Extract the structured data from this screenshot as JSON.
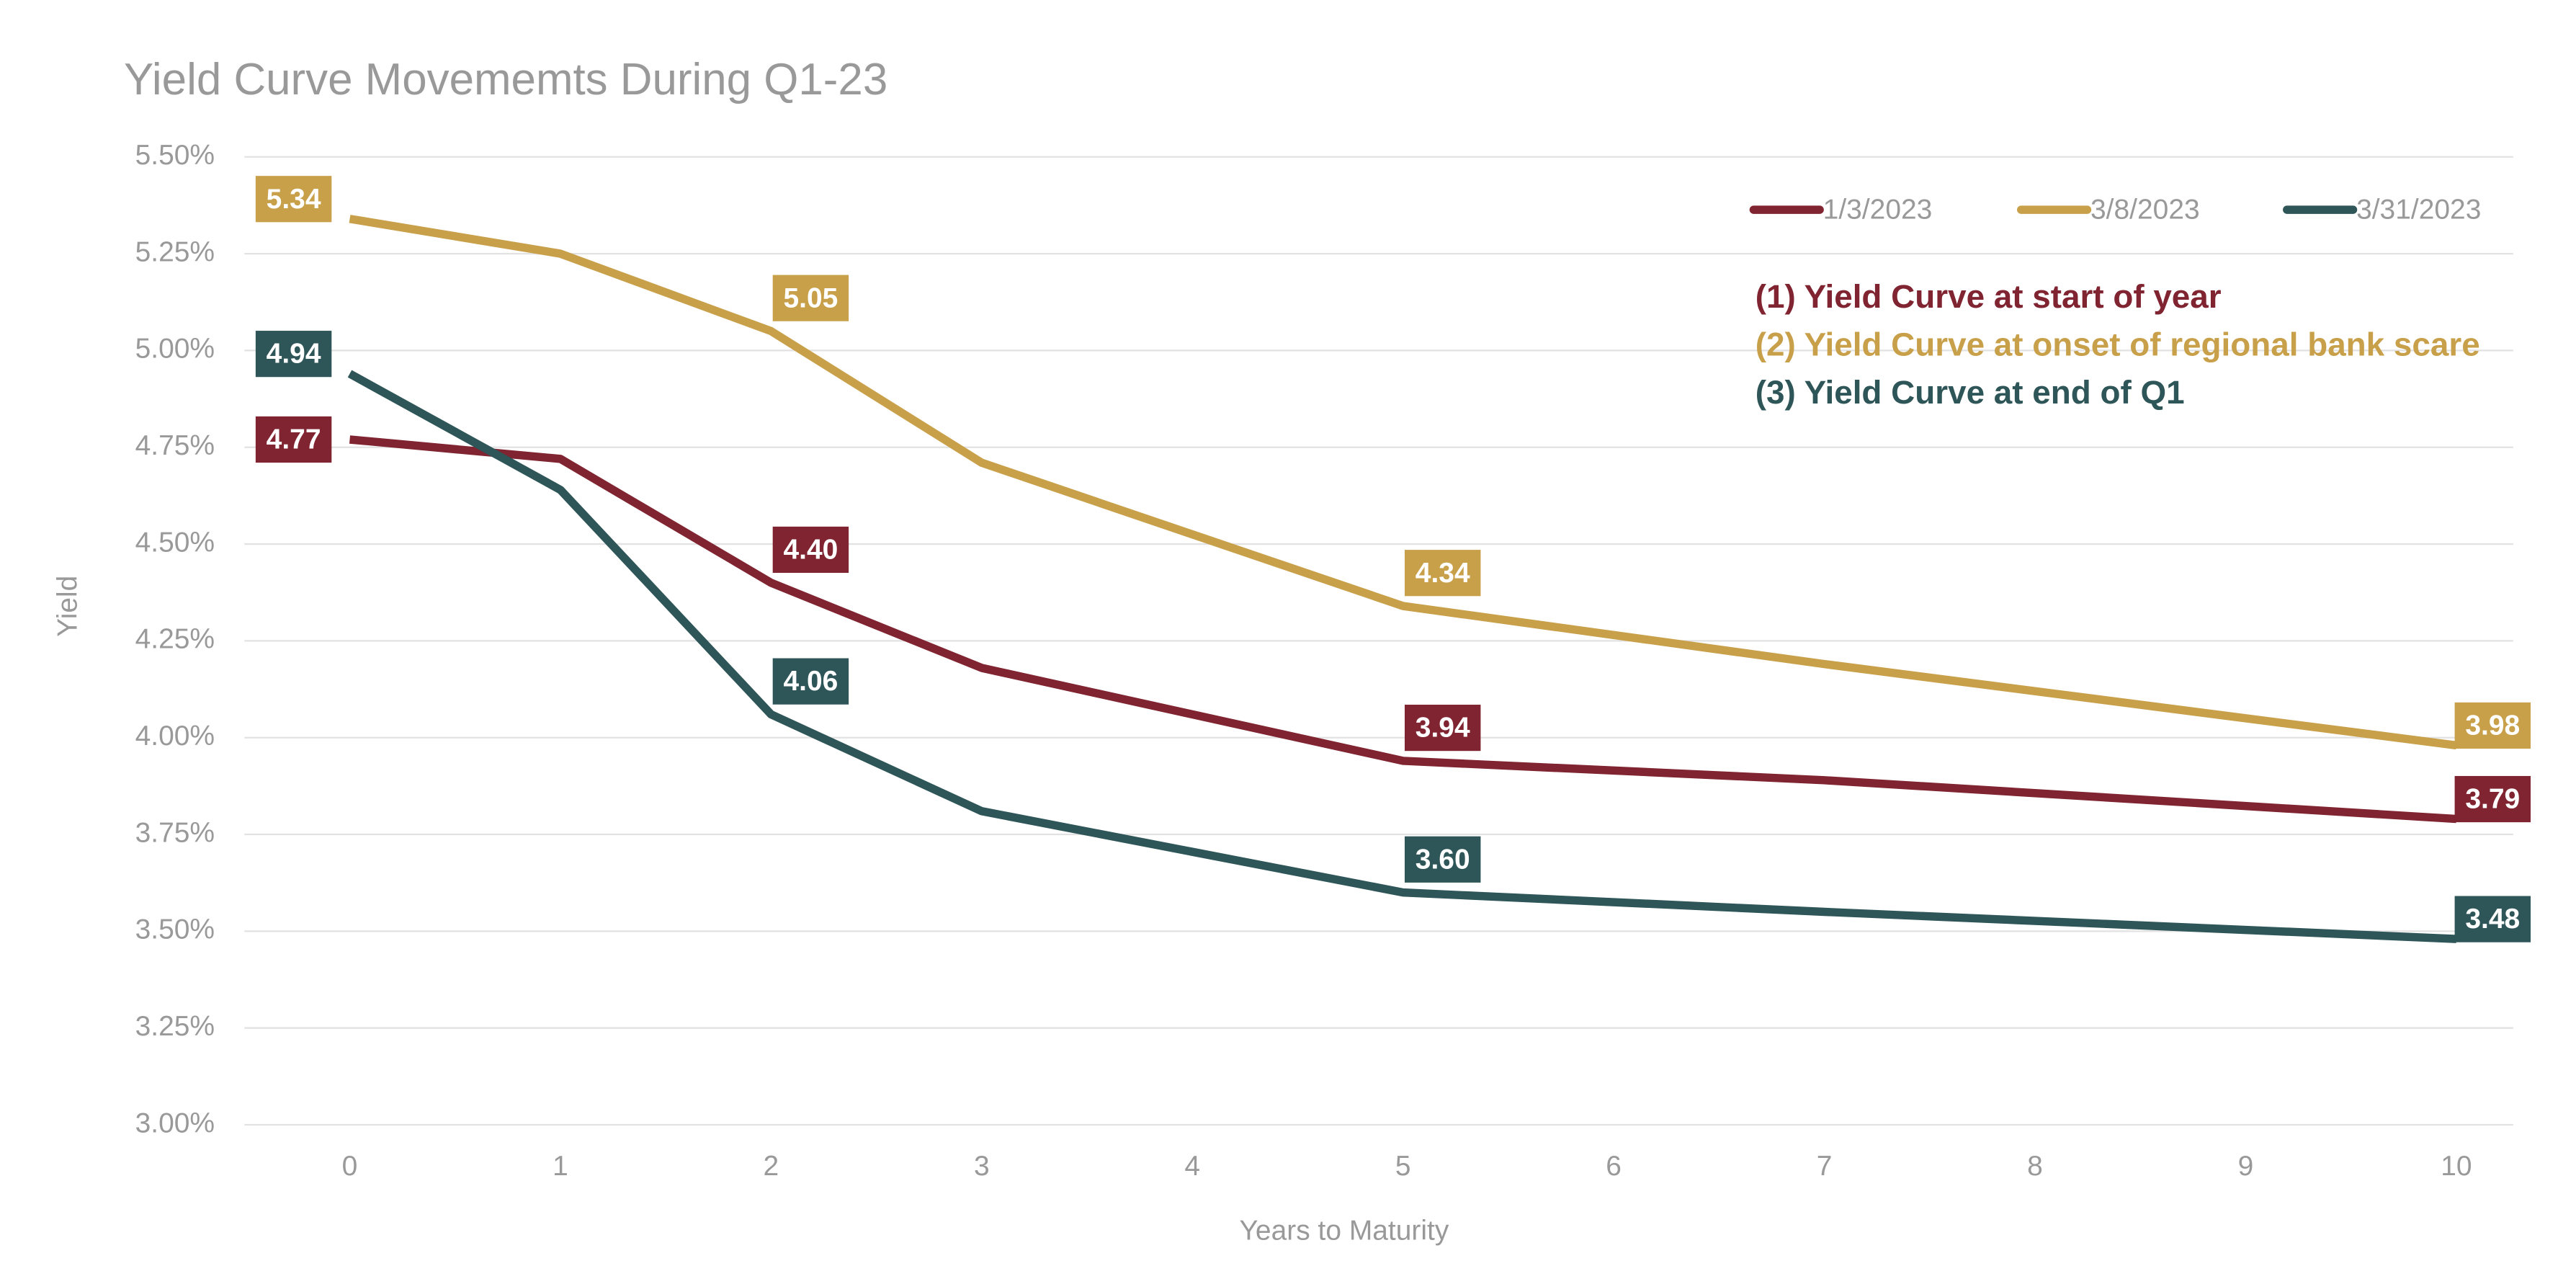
{
  "chart_data": {
    "type": "line",
    "title": "Yield Curve Movememts During Q1-23",
    "xlabel": "Years to Maturity",
    "ylabel": "Yield",
    "x": [
      0,
      1,
      2,
      3,
      5,
      7,
      10
    ],
    "series": [
      {
        "name": "1/3/2023",
        "color": "#7f2430",
        "values": [
          4.77,
          4.72,
          4.4,
          4.18,
          3.94,
          3.89,
          3.79
        ],
        "value_labels": [
          "4.77",
          null,
          "4.40",
          null,
          "3.94",
          null,
          "3.79"
        ]
      },
      {
        "name": "3/8/2023",
        "color": "#c9a04a",
        "values": [
          5.34,
          5.25,
          5.05,
          4.71,
          4.34,
          4.19,
          3.98
        ],
        "value_labels": [
          "5.34",
          null,
          "5.05",
          null,
          "4.34",
          null,
          "3.98"
        ]
      },
      {
        "name": "3/31/2023",
        "color": "#2e5557",
        "values": [
          4.94,
          4.64,
          4.06,
          3.81,
          3.6,
          3.55,
          3.48
        ],
        "value_labels": [
          "4.94",
          null,
          "4.06",
          null,
          "3.60",
          null,
          "3.48"
        ]
      }
    ],
    "annotations": [
      "(1) Yield Curve at start of year",
      "(2) Yield Curve at onset of regional bank scare",
      "(3) Yield Curve at end of Q1"
    ],
    "xlim": [
      -0.5,
      10.27
    ],
    "xticks": [
      0,
      1,
      2,
      3,
      4,
      5,
      6,
      7,
      8,
      9,
      10
    ],
    "ylim": [
      3.0,
      5.5
    ],
    "yticks": [
      {
        "value": 3.0,
        "label": "3.00%"
      },
      {
        "value": 3.25,
        "label": "3.25%"
      },
      {
        "value": 3.5,
        "label": "3.50%"
      },
      {
        "value": 3.75,
        "label": "3.75%"
      },
      {
        "value": 4.0,
        "label": "4.00%"
      },
      {
        "value": 4.25,
        "label": "4.25%"
      },
      {
        "value": 4.5,
        "label": "4.50%"
      },
      {
        "value": 4.75,
        "label": "4.75%"
      },
      {
        "value": 5.0,
        "label": "5.00%"
      },
      {
        "value": 5.25,
        "label": "5.25%"
      },
      {
        "value": 5.5,
        "label": "5.50%"
      }
    ],
    "grid": true,
    "legend": "top-right"
  }
}
